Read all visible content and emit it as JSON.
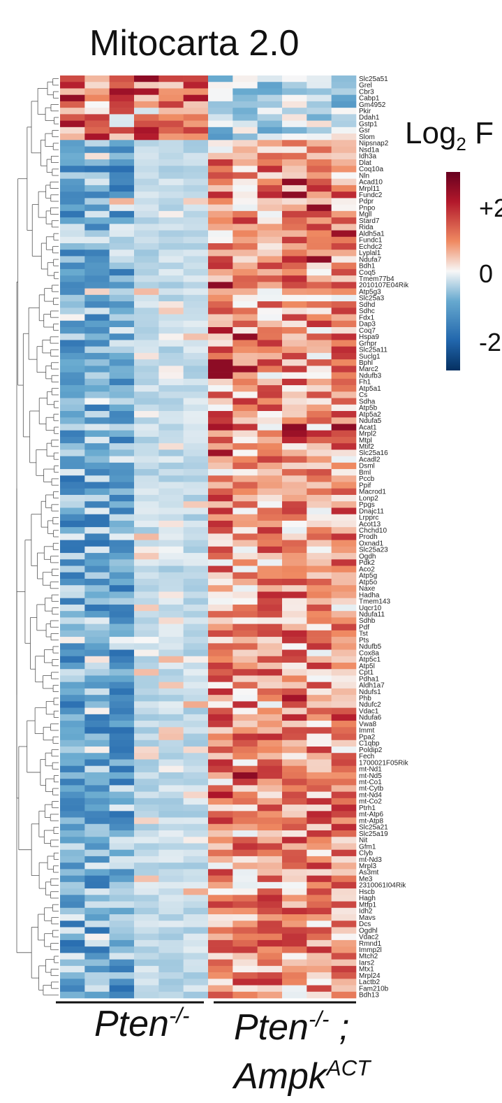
{
  "chart_data": {
    "type": "heatmap",
    "title": "Mitocarta 2.0",
    "legend": {
      "title": "Log",
      "title_subscript": "2",
      "title_suffix": " F",
      "ticks": [
        "+2",
        "0",
        "-2"
      ],
      "range": [
        -2,
        2
      ],
      "colors": {
        "low": "#1f5aa6",
        "mid": "#f7f7f7",
        "high": "#b2182b"
      },
      "placement": "right"
    },
    "groups": [
      {
        "label": "Pten",
        "superscript": "-/-",
        "columns": 6
      },
      {
        "label": "Pten",
        "superscript": "-/-",
        "suffix": " ;",
        "label2": "Ampk",
        "superscript2": "ACT",
        "columns": 6
      }
    ],
    "row_labels": [
      "Slc25a51",
      "Grel",
      "Cbr3",
      "Cabp1",
      "Gm4952",
      "Pkir",
      "Ddah1",
      "Gstp1",
      "Gsr",
      "Slom",
      "Nipsnap2",
      "Nsd1a",
      "Idh3a",
      "Dlat",
      "Coq10a",
      "Nln",
      "Acad10",
      "Mrpl11",
      "Fundc2",
      "Pdpr",
      "Pnpo",
      "Mgll",
      "Stard7",
      "Rida",
      "Aldh5a1",
      "Fundc1",
      "Echdc2",
      "Lyplal1",
      "Ndufa7",
      "Bdh1",
      "Coq5",
      "Tmem77b4",
      "2010107E04Rik",
      "Atp5g3",
      "Slc25a3",
      "Sdhd",
      "Sdhc",
      "Fdx1",
      "Dap3",
      "Coq7",
      "Hspa9",
      "Grhpr",
      "Slc25a11",
      "Suclg1",
      "Bphl",
      "Marc2",
      "Ndufb3",
      "Fh1",
      "Atp5a1",
      "Cs",
      "Sdha",
      "Atp5b",
      "Atp5a2",
      "Ndufa5",
      "Acat1",
      "Mrpl2",
      "Mtpl",
      "Mtif2",
      "Slc25a16",
      "Acadl2",
      "Dsml",
      "Bml",
      "Pccb",
      "Ppif",
      "Macrod1",
      "Lonp2",
      "Ppgs",
      "Dnajc11",
      "Lrpprc",
      "Acot13",
      "Chchd10",
      "Prodh",
      "Oxnad1",
      "Slc25a23",
      "Ogdh",
      "Pdk2",
      "Aco2",
      "Atp5g",
      "Atp5o",
      "Naxe",
      "Hadha",
      "Tmem143",
      "Uqcr10",
      "Ndufa11",
      "Sdhb",
      "Pdf",
      "Tst",
      "Pts",
      "Ndufb5",
      "Cox8a",
      "Atp5c1",
      "Atp5l",
      "Cpt1",
      "Pdha1",
      "Aldh1a7",
      "Ndufs1",
      "Phb",
      "Ndufc2",
      "Vdac1",
      "Ndufa6",
      "Vwa8",
      "Immt",
      "Ppa2",
      "C1qbp",
      "Poldip2",
      "Fech",
      "1700021F05Rik",
      "mt-Nd1",
      "mt-Nd5",
      "mt-Co1",
      "mt-Cytb",
      "mt-Nd4",
      "mt-Co2",
      "Ptrh1",
      "mt-Atp6",
      "mt-Atp8",
      "Slc25a21",
      "Slc25a19",
      "Nit",
      "Gfm1",
      "Clyb",
      "mt-Nd3",
      "Mrpl3",
      "As3mt",
      "Me3",
      "2310061I04Rik",
      "Hscb",
      "Hagh",
      "Mtfp1",
      "Idh2",
      "Mavs",
      "Dcs",
      "Ogdhl",
      "Vdac2",
      "Rmnd1",
      "Immp2l",
      "Mtch2",
      "Iars2",
      "Mtx1",
      "Mrpl24",
      "Lactb2",
      "Fam210b",
      "Bdh13"
    ],
    "value_range": [
      -2,
      2
    ],
    "values_note_free": true,
    "values": []
  }
}
